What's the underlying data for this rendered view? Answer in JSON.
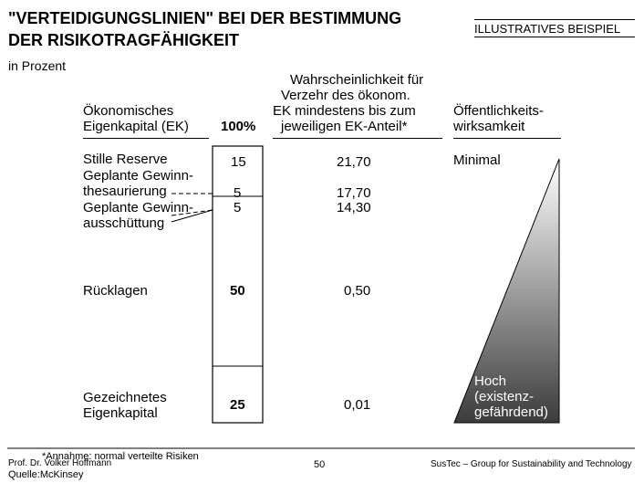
{
  "header": {
    "title_line1": "\"VERTEIDIGUNGSLINIEN\" BEI DER BESTIMMUNG",
    "title_line2": "DER RISIKOTRAGFÄHIGKEIT",
    "badge": "ILLUSTRATIVES BEISPIEL",
    "unit": "in Prozent"
  },
  "columns": {
    "ek_line1": "Ökonomisches",
    "ek_line2": "Eigenkapital (EK)",
    "total": "100%",
    "prob_line1": "Wahrscheinlichkeit für",
    "prob_line2": "Verzehr des ökonom.",
    "prob_line3": "EK mindestens bis zum",
    "prob_line4": "jeweiligen EK-Anteil*",
    "pub_line1": "Öffentlichkeits-",
    "pub_line2": "wirksamkeit"
  },
  "rows": {
    "r1_label": "Stille Reserve",
    "r2_line1": "Geplante Gewinn-",
    "r2_line2": "thesaurierung",
    "r3_line1": "Geplante Gewinn-",
    "r3_line2": "ausschüttung",
    "r4_label": "Rücklagen",
    "r5_line1": "Gezeichnetes",
    "r5_line2": "Eigenkapital"
  },
  "scale": {
    "low": "Minimal",
    "high_line1": "Hoch",
    "high_line2": "(existenz-",
    "high_line3": "gefährdend)"
  },
  "footer": {
    "footnote": "*Annahme:  normal verteilte Risiken",
    "author": "Prof. Dr. Volker Hoffmann",
    "source": "Quelle:McKinsey",
    "page": "50",
    "org": "SusTec – Group for Sustainability and Technology"
  },
  "colors": {
    "gradient_top": "#ffffff",
    "gradient_bottom": "#3c3c3c",
    "rule": "#000000"
  },
  "chart_data": {
    "type": "table",
    "total_label": "100%",
    "segments": [
      {
        "label": "Stille Reserve",
        "ek_share": "15",
        "probability": "21,70"
      },
      {
        "label": "Geplante Gewinnthesaurierung",
        "ek_share": "5",
        "probability": "17,70"
      },
      {
        "label": "Geplante Gewinnausschüttung",
        "ek_share": "5",
        "probability": "14,30"
      },
      {
        "label": "Rücklagen",
        "ek_share": "50",
        "probability": "0,50"
      },
      {
        "label": "Gezeichnetes Eigenkapital",
        "ek_share": "25",
        "probability": "0,01"
      }
    ],
    "publicity_scale": [
      "Minimal",
      "Hoch (existenzgefährdend)"
    ]
  }
}
